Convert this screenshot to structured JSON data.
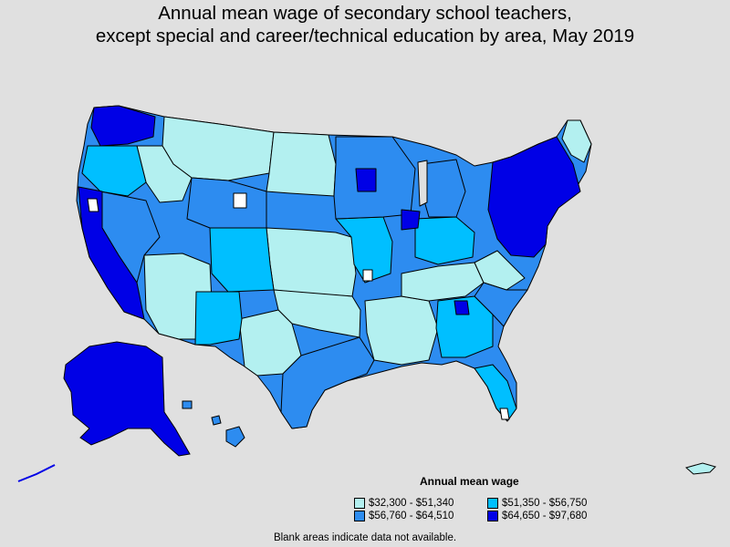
{
  "title": {
    "line1": "Annual mean wage of secondary school teachers,",
    "line2": "except special and career/technical education by area, May 2019"
  },
  "legend": {
    "title": "Annual mean wage",
    "items": [
      {
        "label": "$32,300 - $51,340",
        "color": "#b3f0f0"
      },
      {
        "label": "$51,350 - $56,750",
        "color": "#00bfff"
      },
      {
        "label": "$56,760 - $64,510",
        "color": "#2d8cf0"
      },
      {
        "label": "$64,650 - $97,680",
        "color": "#0000e6"
      }
    ]
  },
  "footnote": "Blank areas indicate data not available.",
  "colors": {
    "background": "#e0e0e0",
    "border": "#000000",
    "blank": "#ffffff"
  }
}
